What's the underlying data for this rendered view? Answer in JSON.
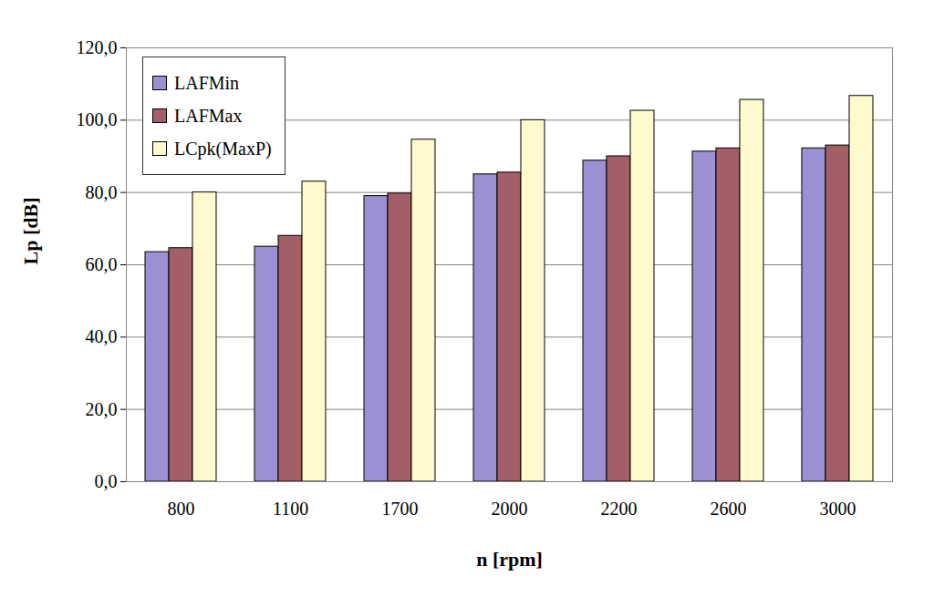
{
  "chart_data": {
    "type": "bar",
    "x_label": "n [rpm]",
    "y_label": "Lp [dB]",
    "categories": [
      "800",
      "1100",
      "1700",
      "2000",
      "2200",
      "2600",
      "3000"
    ],
    "series": [
      {
        "name": "LAFMin",
        "color": "#9b90d2",
        "values": [
          63.5,
          65.0,
          79.0,
          85.0,
          88.8,
          91.3,
          92.2
        ]
      },
      {
        "name": "LAFMax",
        "color": "#a35f68",
        "values": [
          64.6,
          68.0,
          79.7,
          85.5,
          90.0,
          92.2,
          93.0
        ]
      },
      {
        "name": "LCpk(MaxP)",
        "color": "#fffacd",
        "values": [
          80.0,
          83.0,
          94.6,
          100.0,
          102.6,
          105.6,
          106.7
        ]
      }
    ],
    "ylim": [
      0,
      120
    ],
    "yticks": [
      {
        "value": 0,
        "label": "0,0"
      },
      {
        "value": 20,
        "label": "20,0"
      },
      {
        "value": 40,
        "label": "40,0"
      },
      {
        "value": 60,
        "label": "60,0"
      },
      {
        "value": 80,
        "label": "80,0"
      },
      {
        "value": 100,
        "label": "100,0"
      },
      {
        "value": 120,
        "label": "120,0"
      }
    ],
    "grid": true,
    "legend": "top-left"
  }
}
